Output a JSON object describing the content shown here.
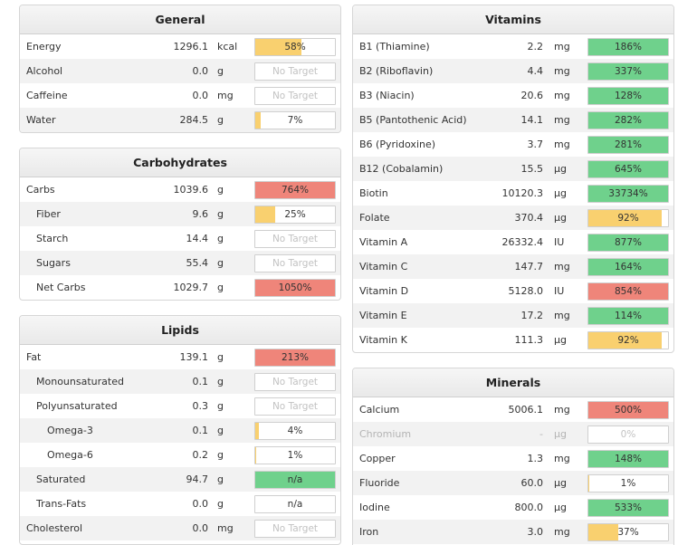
{
  "colors": {
    "green": "#6fd18c",
    "red": "#ef857a",
    "yellow": "#f9d06f"
  },
  "general": {
    "title": "General",
    "rows": [
      {
        "name": "Energy",
        "value": "1296.1",
        "unit": "kcal",
        "pct": "58%",
        "fill": 58,
        "color": "yellow",
        "indent": 0
      },
      {
        "name": "Alcohol",
        "value": "0.0",
        "unit": "g",
        "pct": "No Target",
        "fill": 0,
        "color": "none",
        "indent": 0
      },
      {
        "name": "Caffeine",
        "value": "0.0",
        "unit": "mg",
        "pct": "No Target",
        "fill": 0,
        "color": "none",
        "indent": 0
      },
      {
        "name": "Water",
        "value": "284.5",
        "unit": "g",
        "pct": "7%",
        "fill": 7,
        "color": "yellow",
        "indent": 0
      }
    ]
  },
  "carbohydrates": {
    "title": "Carbohydrates",
    "rows": [
      {
        "name": "Carbs",
        "value": "1039.6",
        "unit": "g",
        "pct": "764%",
        "fill": 100,
        "color": "red",
        "indent": 0
      },
      {
        "name": "Fiber",
        "value": "9.6",
        "unit": "g",
        "pct": "25%",
        "fill": 25,
        "color": "yellow",
        "indent": 1
      },
      {
        "name": "Starch",
        "value": "14.4",
        "unit": "g",
        "pct": "No Target",
        "fill": 0,
        "color": "none",
        "indent": 1
      },
      {
        "name": "Sugars",
        "value": "55.4",
        "unit": "g",
        "pct": "No Target",
        "fill": 0,
        "color": "none",
        "indent": 1
      },
      {
        "name": "Net Carbs",
        "value": "1029.7",
        "unit": "g",
        "pct": "1050%",
        "fill": 100,
        "color": "red",
        "indent": 1
      }
    ]
  },
  "lipids": {
    "title": "Lipids",
    "rows": [
      {
        "name": "Fat",
        "value": "139.1",
        "unit": "g",
        "pct": "213%",
        "fill": 100,
        "color": "red",
        "indent": 0
      },
      {
        "name": "Monounsaturated",
        "value": "0.1",
        "unit": "g",
        "pct": "No Target",
        "fill": 0,
        "color": "none",
        "indent": 1
      },
      {
        "name": "Polyunsaturated",
        "value": "0.3",
        "unit": "g",
        "pct": "No Target",
        "fill": 0,
        "color": "none",
        "indent": 1
      },
      {
        "name": "Omega-3",
        "value": "0.1",
        "unit": "g",
        "pct": "4%",
        "fill": 4,
        "color": "yellow",
        "indent": 2
      },
      {
        "name": "Omega-6",
        "value": "0.2",
        "unit": "g",
        "pct": "1%",
        "fill": 1,
        "color": "yellow",
        "indent": 2
      },
      {
        "name": "Saturated",
        "value": "94.7",
        "unit": "g",
        "pct": "n/a",
        "fill": 100,
        "color": "green",
        "indent": 1
      },
      {
        "name": "Trans-Fats",
        "value": "0.0",
        "unit": "g",
        "pct": "n/a",
        "fill": 0,
        "color": "none",
        "indent": 1,
        "solid_text": true
      },
      {
        "name": "Cholesterol",
        "value": "0.0",
        "unit": "mg",
        "pct": "No Target",
        "fill": 0,
        "color": "none",
        "indent": 0
      }
    ]
  },
  "vitamins": {
    "title": "Vitamins",
    "rows": [
      {
        "name": "B1 (Thiamine)",
        "value": "2.2",
        "unit": "mg",
        "pct": "186%",
        "fill": 100,
        "color": "green"
      },
      {
        "name": "B2 (Riboflavin)",
        "value": "4.4",
        "unit": "mg",
        "pct": "337%",
        "fill": 100,
        "color": "green"
      },
      {
        "name": "B3 (Niacin)",
        "value": "20.6",
        "unit": "mg",
        "pct": "128%",
        "fill": 100,
        "color": "green"
      },
      {
        "name": "B5 (Pantothenic Acid)",
        "value": "14.1",
        "unit": "mg",
        "pct": "282%",
        "fill": 100,
        "color": "green"
      },
      {
        "name": "B6 (Pyridoxine)",
        "value": "3.7",
        "unit": "mg",
        "pct": "281%",
        "fill": 100,
        "color": "green"
      },
      {
        "name": "B12 (Cobalamin)",
        "value": "15.5",
        "unit": "µg",
        "pct": "645%",
        "fill": 100,
        "color": "green"
      },
      {
        "name": "Biotin",
        "value": "10120.3",
        "unit": "µg",
        "pct": "33734%",
        "fill": 100,
        "color": "green"
      },
      {
        "name": "Folate",
        "value": "370.4",
        "unit": "µg",
        "pct": "92%",
        "fill": 92,
        "color": "yellow"
      },
      {
        "name": "Vitamin A",
        "value": "26332.4",
        "unit": "IU",
        "pct": "877%",
        "fill": 100,
        "color": "green"
      },
      {
        "name": "Vitamin C",
        "value": "147.7",
        "unit": "mg",
        "pct": "164%",
        "fill": 100,
        "color": "green"
      },
      {
        "name": "Vitamin D",
        "value": "5128.0",
        "unit": "IU",
        "pct": "854%",
        "fill": 100,
        "color": "red"
      },
      {
        "name": "Vitamin E",
        "value": "17.2",
        "unit": "mg",
        "pct": "114%",
        "fill": 100,
        "color": "green"
      },
      {
        "name": "Vitamin K",
        "value": "111.3",
        "unit": "µg",
        "pct": "92%",
        "fill": 92,
        "color": "yellow"
      }
    ]
  },
  "minerals": {
    "title": "Minerals",
    "rows": [
      {
        "name": "Calcium",
        "value": "5006.1",
        "unit": "mg",
        "pct": "500%",
        "fill": 100,
        "color": "red"
      },
      {
        "name": "Chromium",
        "value": "-",
        "unit": "µg",
        "pct": "0%",
        "fill": 0,
        "color": "none",
        "disabled": true
      },
      {
        "name": "Copper",
        "value": "1.3",
        "unit": "mg",
        "pct": "148%",
        "fill": 100,
        "color": "green"
      },
      {
        "name": "Fluoride",
        "value": "60.0",
        "unit": "µg",
        "pct": "1%",
        "fill": 1,
        "color": "yellow"
      },
      {
        "name": "Iodine",
        "value": "800.0",
        "unit": "µg",
        "pct": "533%",
        "fill": 100,
        "color": "green"
      },
      {
        "name": "Iron",
        "value": "3.0",
        "unit": "mg",
        "pct": "37%",
        "fill": 37,
        "color": "yellow"
      }
    ]
  }
}
